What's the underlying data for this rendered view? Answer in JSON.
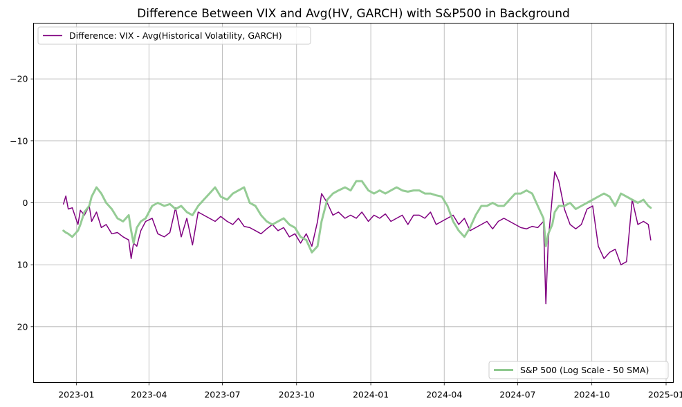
{
  "chart_data": {
    "type": "line",
    "title": "Difference Between VIX and Avg(HV, GARCH) with S&P500 in Background",
    "xlabel": "",
    "ylabel": "",
    "y_inverted": true,
    "ylim": [
      29,
      -29
    ],
    "xlim": [
      "2022-11-09",
      "2025-01-10"
    ],
    "grid": true,
    "x_ticks": [
      "2023-01",
      "2023-04",
      "2023-07",
      "2023-10",
      "2024-01",
      "2024-04",
      "2024-07",
      "2024-10",
      "2025-01"
    ],
    "y_ticks": [
      -20,
      -10,
      0,
      10,
      20
    ],
    "y_tick_labels": [
      "−20",
      "−10",
      "0",
      "10",
      "20"
    ],
    "legend_primary": {
      "placement": "upper-left",
      "label": "Difference: VIX - Avg(Historical Volatility, GARCH)",
      "color": "#800080"
    },
    "legend_secondary": {
      "placement": "lower-right",
      "label": "S&P 500 (Log Scale - 50 SMA)",
      "color": "#8fc98f"
    },
    "series": [
      {
        "name": "Difference: VIX - Avg(Historical Volatility, GARCH)",
        "color": "#800080",
        "x": [
          "2022-12-16",
          "2022-12-19",
          "2022-12-22",
          "2022-12-27",
          "2023-01-03",
          "2023-01-06",
          "2023-01-11",
          "2023-01-17",
          "2023-01-20",
          "2023-01-26",
          "2023-02-01",
          "2023-02-07",
          "2023-02-14",
          "2023-02-21",
          "2023-02-28",
          "2023-03-07",
          "2023-03-10",
          "2023-03-13",
          "2023-03-17",
          "2023-03-22",
          "2023-03-28",
          "2023-04-05",
          "2023-04-12",
          "2023-04-20",
          "2023-04-27",
          "2023-05-04",
          "2023-05-11",
          "2023-05-18",
          "2023-05-25",
          "2023-06-01",
          "2023-06-08",
          "2023-06-15",
          "2023-06-22",
          "2023-06-29",
          "2023-07-07",
          "2023-07-14",
          "2023-07-21",
          "2023-07-28",
          "2023-08-04",
          "2023-08-11",
          "2023-08-18",
          "2023-08-25",
          "2023-09-01",
          "2023-09-08",
          "2023-09-15",
          "2023-09-22",
          "2023-09-29",
          "2023-10-06",
          "2023-10-13",
          "2023-10-20",
          "2023-10-27",
          "2023-11-01",
          "2023-11-08",
          "2023-11-15",
          "2023-11-22",
          "2023-11-30",
          "2023-12-07",
          "2023-12-14",
          "2023-12-21",
          "2023-12-29",
          "2024-01-05",
          "2024-01-12",
          "2024-01-19",
          "2024-01-26",
          "2024-02-02",
          "2024-02-09",
          "2024-02-16",
          "2024-02-23",
          "2024-03-01",
          "2024-03-08",
          "2024-03-15",
          "2024-03-22",
          "2024-03-29",
          "2024-04-05",
          "2024-04-12",
          "2024-04-19",
          "2024-04-26",
          "2024-05-03",
          "2024-05-10",
          "2024-05-17",
          "2024-05-24",
          "2024-05-31",
          "2024-06-07",
          "2024-06-14",
          "2024-06-21",
          "2024-06-28",
          "2024-07-05",
          "2024-07-12",
          "2024-07-19",
          "2024-07-26",
          "2024-08-02",
          "2024-08-05",
          "2024-08-08",
          "2024-08-13",
          "2024-08-16",
          "2024-08-21",
          "2024-08-28",
          "2024-09-04",
          "2024-09-11",
          "2024-09-18",
          "2024-09-25",
          "2024-10-02",
          "2024-10-09",
          "2024-10-16",
          "2024-10-23",
          "2024-10-30",
          "2024-11-06",
          "2024-11-13",
          "2024-11-20",
          "2024-11-27",
          "2024-12-04",
          "2024-12-10",
          "2024-12-13"
        ],
        "y": [
          0.2,
          -1.1,
          1.0,
          0.8,
          3.5,
          1.2,
          2.0,
          0.5,
          3.0,
          1.5,
          4.0,
          3.5,
          5.0,
          4.8,
          5.5,
          6.0,
          9.0,
          6.5,
          7.0,
          4.5,
          3.0,
          2.5,
          5.0,
          5.5,
          4.8,
          0.8,
          5.5,
          2.5,
          6.8,
          1.5,
          2.0,
          2.5,
          3.0,
          2.2,
          3.0,
          3.5,
          2.5,
          3.8,
          4.0,
          4.5,
          5.0,
          4.2,
          3.5,
          4.5,
          4.0,
          5.5,
          5.0,
          6.5,
          5.0,
          7.0,
          3.0,
          -1.5,
          0.0,
          2.0,
          1.5,
          2.5,
          2.0,
          2.5,
          1.5,
          3.0,
          2.0,
          2.5,
          1.8,
          3.0,
          2.5,
          2.0,
          3.5,
          2.0,
          2.0,
          2.5,
          1.5,
          3.5,
          3.0,
          2.5,
          2.0,
          3.5,
          2.5,
          4.5,
          4.0,
          3.5,
          3.0,
          4.2,
          3.0,
          2.5,
          3.0,
          3.5,
          4.0,
          4.2,
          3.8,
          4.0,
          3.0,
          16.3,
          6.0,
          -1.0,
          -5.0,
          -3.5,
          1.0,
          3.5,
          4.2,
          3.5,
          1.0,
          0.5,
          7.0,
          9.0,
          8.0,
          7.5,
          10.0,
          9.5,
          -0.5,
          3.5,
          3.0,
          3.5,
          6.0
        ]
      },
      {
        "name": "S&P 500 (Log Scale - 50 SMA)",
        "color": "#8fc98f",
        "x": [
          "2022-12-16",
          "2022-12-19",
          "2022-12-22",
          "2022-12-27",
          "2023-01-03",
          "2023-01-06",
          "2023-01-11",
          "2023-01-17",
          "2023-01-20",
          "2023-01-26",
          "2023-02-01",
          "2023-02-07",
          "2023-02-14",
          "2023-02-21",
          "2023-02-28",
          "2023-03-07",
          "2023-03-10",
          "2023-03-13",
          "2023-03-17",
          "2023-03-22",
          "2023-03-28",
          "2023-04-05",
          "2023-04-12",
          "2023-04-20",
          "2023-04-27",
          "2023-05-04",
          "2023-05-11",
          "2023-05-18",
          "2023-05-25",
          "2023-06-01",
          "2023-06-08",
          "2023-06-15",
          "2023-06-22",
          "2023-06-29",
          "2023-07-07",
          "2023-07-14",
          "2023-07-21",
          "2023-07-28",
          "2023-08-04",
          "2023-08-11",
          "2023-08-18",
          "2023-08-25",
          "2023-09-01",
          "2023-09-08",
          "2023-09-15",
          "2023-09-22",
          "2023-09-29",
          "2023-10-06",
          "2023-10-13",
          "2023-10-20",
          "2023-10-27",
          "2023-11-01",
          "2023-11-08",
          "2023-11-15",
          "2023-11-22",
          "2023-11-30",
          "2023-12-07",
          "2023-12-14",
          "2023-12-21",
          "2023-12-29",
          "2024-01-05",
          "2024-01-12",
          "2024-01-19",
          "2024-01-26",
          "2024-02-02",
          "2024-02-09",
          "2024-02-16",
          "2024-02-23",
          "2024-03-01",
          "2024-03-08",
          "2024-03-15",
          "2024-03-22",
          "2024-03-29",
          "2024-04-05",
          "2024-04-12",
          "2024-04-19",
          "2024-04-26",
          "2024-05-03",
          "2024-05-10",
          "2024-05-17",
          "2024-05-24",
          "2024-05-31",
          "2024-06-07",
          "2024-06-14",
          "2024-06-21",
          "2024-06-28",
          "2024-07-05",
          "2024-07-12",
          "2024-07-19",
          "2024-07-26",
          "2024-08-02",
          "2024-08-05",
          "2024-08-08",
          "2024-08-13",
          "2024-08-16",
          "2024-08-21",
          "2024-08-28",
          "2024-09-04",
          "2024-09-11",
          "2024-09-18",
          "2024-09-25",
          "2024-10-02",
          "2024-10-09",
          "2024-10-16",
          "2024-10-23",
          "2024-10-30",
          "2024-11-06",
          "2024-11-13",
          "2024-11-20",
          "2024-11-27",
          "2024-12-04",
          "2024-12-10",
          "2024-12-13"
        ],
        "y": [
          4.5,
          4.8,
          5.0,
          5.5,
          4.5,
          3.5,
          1.5,
          0.5,
          -1.0,
          -2.5,
          -1.5,
          0.0,
          1.0,
          2.5,
          3.0,
          2.0,
          4.5,
          6.5,
          4.0,
          3.0,
          2.5,
          0.5,
          0.0,
          0.5,
          0.2,
          1.0,
          0.5,
          1.5,
          2.0,
          0.5,
          -0.5,
          -1.5,
          -2.5,
          -1.0,
          -0.5,
          -1.5,
          -2.0,
          -2.5,
          0.0,
          0.5,
          2.0,
          3.0,
          3.5,
          3.0,
          2.5,
          3.5,
          4.0,
          5.5,
          6.0,
          8.0,
          7.0,
          3.0,
          -0.5,
          -1.5,
          -2.0,
          -2.5,
          -2.0,
          -3.5,
          -3.5,
          -2.0,
          -1.5,
          -2.0,
          -1.5,
          -2.0,
          -2.5,
          -2.0,
          -1.8,
          -2.0,
          -2.0,
          -1.5,
          -1.5,
          -1.2,
          -1.0,
          0.5,
          3.0,
          4.5,
          5.5,
          4.0,
          2.0,
          0.5,
          0.5,
          0.0,
          0.5,
          0.5,
          -0.5,
          -1.5,
          -1.5,
          -2.0,
          -1.5,
          0.5,
          2.5,
          7.0,
          5.0,
          3.5,
          1.5,
          0.5,
          0.5,
          0.0,
          1.0,
          0.5,
          0.0,
          -0.5,
          -1.0,
          -1.5,
          -1.0,
          0.5,
          -1.5,
          -1.0,
          -0.5,
          0.0,
          -0.5,
          0.5,
          0.8
        ]
      }
    ]
  }
}
